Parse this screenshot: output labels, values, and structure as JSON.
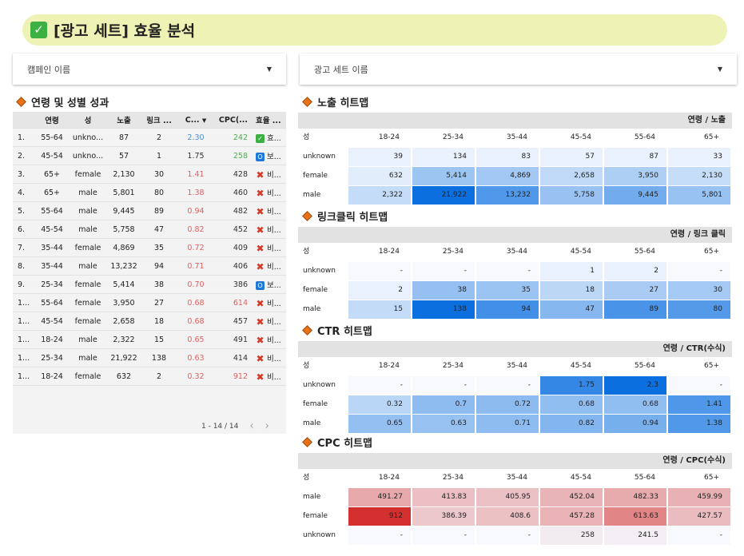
{
  "title": "[광고 세트] 효율 분석",
  "filters": {
    "campaign": "캠페인 이름",
    "adset": "광고 세트 이름"
  },
  "left": {
    "title": "연령 및 성별 성과",
    "headers": [
      "연령",
      "성",
      "노출",
      "링크 ...",
      "C...",
      "CPC(...",
      "효율 ..."
    ],
    "rows": [
      {
        "i": "1.",
        "age": "55-64",
        "gender": "unkno...",
        "imp": "87",
        "clk": "2",
        "ctr": "2.30",
        "ctr_color": "blue",
        "cpc": "242",
        "cpc_color": "green",
        "eff_icon": "check",
        "eff": "효..."
      },
      {
        "i": "2.",
        "age": "45-54",
        "gender": "unkno...",
        "imp": "57",
        "clk": "1",
        "ctr": "1.75",
        "ctr_color": "default",
        "cpc": "258",
        "cpc_color": "green",
        "eff_icon": "info",
        "eff": "보..."
      },
      {
        "i": "3.",
        "age": "65+",
        "gender": "female",
        "imp": "2,130",
        "clk": "30",
        "ctr": "1.41",
        "ctr_color": "red",
        "cpc": "428",
        "cpc_color": "default",
        "eff_icon": "cross",
        "eff": "비..."
      },
      {
        "i": "4.",
        "age": "65+",
        "gender": "male",
        "imp": "5,801",
        "clk": "80",
        "ctr": "1.38",
        "ctr_color": "red",
        "cpc": "460",
        "cpc_color": "default",
        "eff_icon": "cross",
        "eff": "비..."
      },
      {
        "i": "5.",
        "age": "55-64",
        "gender": "male",
        "imp": "9,445",
        "clk": "89",
        "ctr": "0.94",
        "ctr_color": "red",
        "cpc": "482",
        "cpc_color": "default",
        "eff_icon": "cross",
        "eff": "비..."
      },
      {
        "i": "6.",
        "age": "45-54",
        "gender": "male",
        "imp": "5,758",
        "clk": "47",
        "ctr": "0.82",
        "ctr_color": "red",
        "cpc": "452",
        "cpc_color": "default",
        "eff_icon": "cross",
        "eff": "비..."
      },
      {
        "i": "7.",
        "age": "35-44",
        "gender": "female",
        "imp": "4,869",
        "clk": "35",
        "ctr": "0.72",
        "ctr_color": "red",
        "cpc": "409",
        "cpc_color": "default",
        "eff_icon": "cross",
        "eff": "비..."
      },
      {
        "i": "8.",
        "age": "35-44",
        "gender": "male",
        "imp": "13,232",
        "clk": "94",
        "ctr": "0.71",
        "ctr_color": "red",
        "cpc": "406",
        "cpc_color": "default",
        "eff_icon": "cross",
        "eff": "비..."
      },
      {
        "i": "9.",
        "age": "25-34",
        "gender": "female",
        "imp": "5,414",
        "clk": "38",
        "ctr": "0.70",
        "ctr_color": "red",
        "cpc": "386",
        "cpc_color": "default",
        "eff_icon": "info",
        "eff": "보..."
      },
      {
        "i": "1...",
        "age": "55-64",
        "gender": "female",
        "imp": "3,950",
        "clk": "27",
        "ctr": "0.68",
        "ctr_color": "red",
        "cpc": "614",
        "cpc_color": "red",
        "eff_icon": "cross",
        "eff": "비..."
      },
      {
        "i": "1...",
        "age": "45-54",
        "gender": "female",
        "imp": "2,658",
        "clk": "18",
        "ctr": "0.68",
        "ctr_color": "red",
        "cpc": "457",
        "cpc_color": "default",
        "eff_icon": "cross",
        "eff": "비..."
      },
      {
        "i": "1...",
        "age": "18-24",
        "gender": "male",
        "imp": "2,322",
        "clk": "15",
        "ctr": "0.65",
        "ctr_color": "red",
        "cpc": "491",
        "cpc_color": "default",
        "eff_icon": "cross",
        "eff": "비..."
      },
      {
        "i": "1...",
        "age": "25-34",
        "gender": "male",
        "imp": "21,922",
        "clk": "138",
        "ctr": "0.63",
        "ctr_color": "red",
        "cpc": "414",
        "cpc_color": "default",
        "eff_icon": "cross",
        "eff": "비..."
      },
      {
        "i": "1...",
        "age": "18-24",
        "gender": "female",
        "imp": "632",
        "clk": "2",
        "ctr": "0.32",
        "ctr_color": "red",
        "cpc": "912",
        "cpc_color": "red",
        "eff_icon": "cross",
        "eff": "비..."
      }
    ],
    "pagination": "1 - 14 / 14"
  },
  "colors": {
    "blue": "#4a8fd9",
    "red": "#e06060",
    "green": "#4caf50",
    "default": "#333333",
    "heat_blue": "#0b6fe0",
    "heat_red": "#d32f2f"
  },
  "heatmaps": [
    {
      "title": "노출 히트맵",
      "bar": "연령 / 노출",
      "scale": "blue",
      "row_header": "성",
      "cols": [
        "18-24",
        "25-34",
        "35-44",
        "45-54",
        "55-64",
        "65+"
      ],
      "rows": [
        {
          "label": "unknown",
          "values": [
            "39",
            "134",
            "83",
            "57",
            "87",
            "33"
          ]
        },
        {
          "label": "female",
          "values": [
            "632",
            "5,414",
            "4,869",
            "2,658",
            "3,950",
            "2,130"
          ]
        },
        {
          "label": "male",
          "values": [
            "2,322",
            "21,922",
            "13,232",
            "5,758",
            "9,445",
            "5,801"
          ]
        }
      ]
    },
    {
      "title": "링크클릭 히트맵",
      "bar": "연령 / 링크 클릭",
      "scale": "blue",
      "row_header": "성",
      "cols": [
        "18-24",
        "25-34",
        "35-44",
        "45-54",
        "55-64",
        "65+"
      ],
      "rows": [
        {
          "label": "unknown",
          "values": [
            "-",
            "-",
            "-",
            "1",
            "2",
            "-"
          ]
        },
        {
          "label": "female",
          "values": [
            "2",
            "38",
            "35",
            "18",
            "27",
            "30"
          ]
        },
        {
          "label": "male",
          "values": [
            "15",
            "138",
            "94",
            "47",
            "89",
            "80"
          ]
        }
      ]
    },
    {
      "title": "CTR 히트맵",
      "bar": "연령 / CTR(수식)",
      "scale": "blue",
      "row_header": "성",
      "cols": [
        "18-24",
        "25-34",
        "35-44",
        "45-54",
        "55-64",
        "65+"
      ],
      "rows": [
        {
          "label": "unknown",
          "values": [
            "-",
            "-",
            "-",
            "1.75",
            "2.3",
            "-"
          ]
        },
        {
          "label": "female",
          "values": [
            "0.32",
            "0.7",
            "0.72",
            "0.68",
            "0.68",
            "1.41"
          ]
        },
        {
          "label": "male",
          "values": [
            "0.65",
            "0.63",
            "0.71",
            "0.82",
            "0.94",
            "1.38"
          ]
        }
      ]
    },
    {
      "title": "CPC 히트맵",
      "bar": "연령 / CPC(수식)",
      "scale": "red",
      "row_header": "성",
      "cols": [
        "18-24",
        "25-34",
        "35-44",
        "45-54",
        "55-64",
        "65+"
      ],
      "rows": [
        {
          "label": "male",
          "values": [
            "491.27",
            "413.83",
            "405.95",
            "452.04",
            "482.33",
            "459.99"
          ]
        },
        {
          "label": "female",
          "values": [
            "912",
            "386.39",
            "408.6",
            "457.28",
            "613.63",
            "427.57"
          ]
        },
        {
          "label": "unknown",
          "values": [
            "-",
            "-",
            "-",
            "258",
            "241.5",
            "-"
          ]
        }
      ]
    }
  ]
}
